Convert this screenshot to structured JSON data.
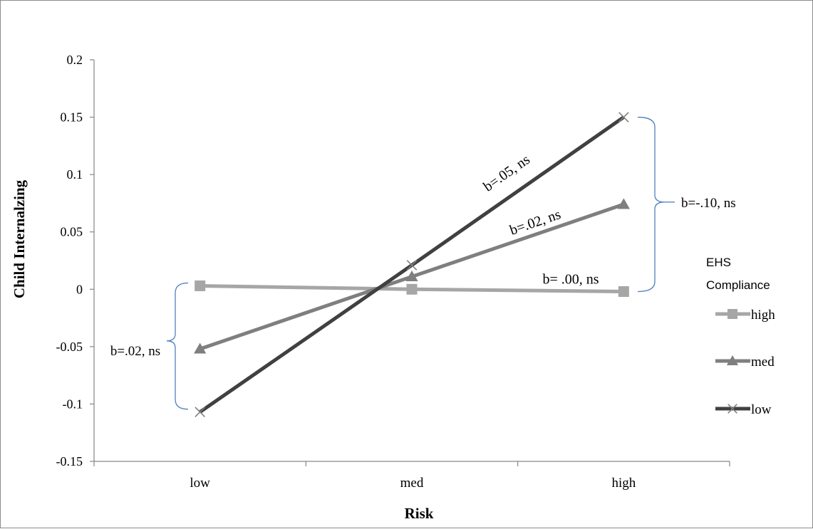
{
  "chart_data": {
    "type": "line",
    "title": "",
    "xlabel": "Risk",
    "ylabel": "Child Internalzing",
    "categories": [
      "low",
      "med",
      "high"
    ],
    "ylim": [
      -0.15,
      0.2
    ],
    "yticks": [
      "0.2",
      "0.15",
      "0.1",
      "0.05",
      "0",
      "-0.05",
      "-0.1",
      "-0.15"
    ],
    "ytick_values": [
      0.2,
      0.15,
      0.1,
      0.05,
      0,
      -0.05,
      -0.1,
      -0.15
    ],
    "grid": false,
    "legend_position": "right",
    "legend_title": [
      "EHS",
      "Compliance"
    ],
    "series": [
      {
        "name": "high",
        "values": [
          0.003,
          0.0,
          -0.002
        ],
        "color": "#a6a6a6",
        "marker": "square",
        "slope_label": "b= .00, ns"
      },
      {
        "name": "med",
        "values": [
          -0.052,
          0.011,
          0.074
        ],
        "color": "#7f7f7f",
        "marker": "triangle",
        "slope_label": "b=.02, ns"
      },
      {
        "name": "low",
        "values": [
          -0.107,
          0.021,
          0.15
        ],
        "color": "#404040",
        "marker": "x",
        "slope_label": "b=.05, ns"
      }
    ],
    "annotations": [
      {
        "text": "b=.02, ns",
        "at": "low"
      },
      {
        "text": "b=-.10, ns",
        "at": "high"
      }
    ],
    "bracket_color": "#4f81bd"
  }
}
